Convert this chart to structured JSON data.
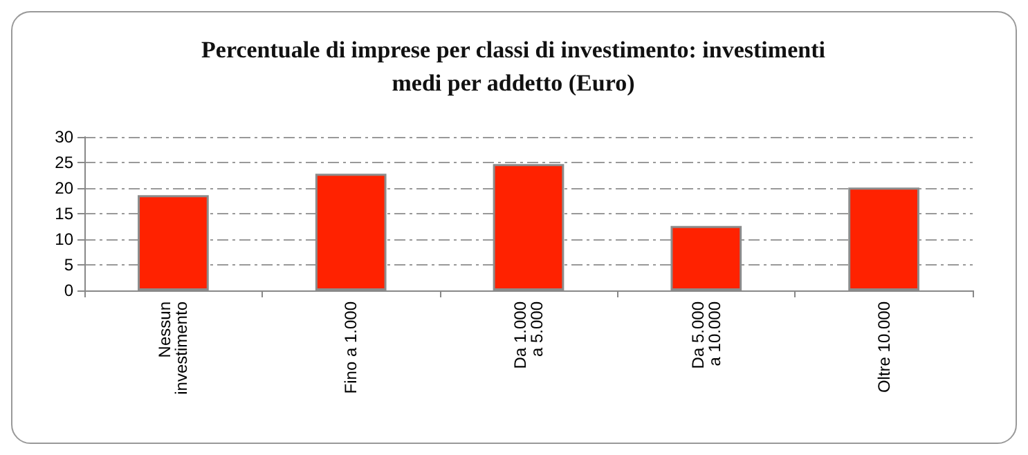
{
  "chart_data": {
    "type": "bar",
    "title": "Percentuale di imprese per classi di investimento: investimenti\nmedi per addetto (Euro)",
    "categories": [
      "Nessun\ninvestimento",
      "Fino a 1.000",
      "Da 1.000\na 5.000",
      "Da 5.000\na 10.000",
      "Oltre 10.000"
    ],
    "values": [
      18.6,
      22.8,
      24.7,
      12.6,
      20.1
    ],
    "color": "#ff2200",
    "ylim": [
      0,
      30
    ],
    "yticks": [
      0,
      5,
      10,
      15,
      20,
      25,
      30
    ],
    "grid": "y",
    "line_style": "dashed"
  }
}
